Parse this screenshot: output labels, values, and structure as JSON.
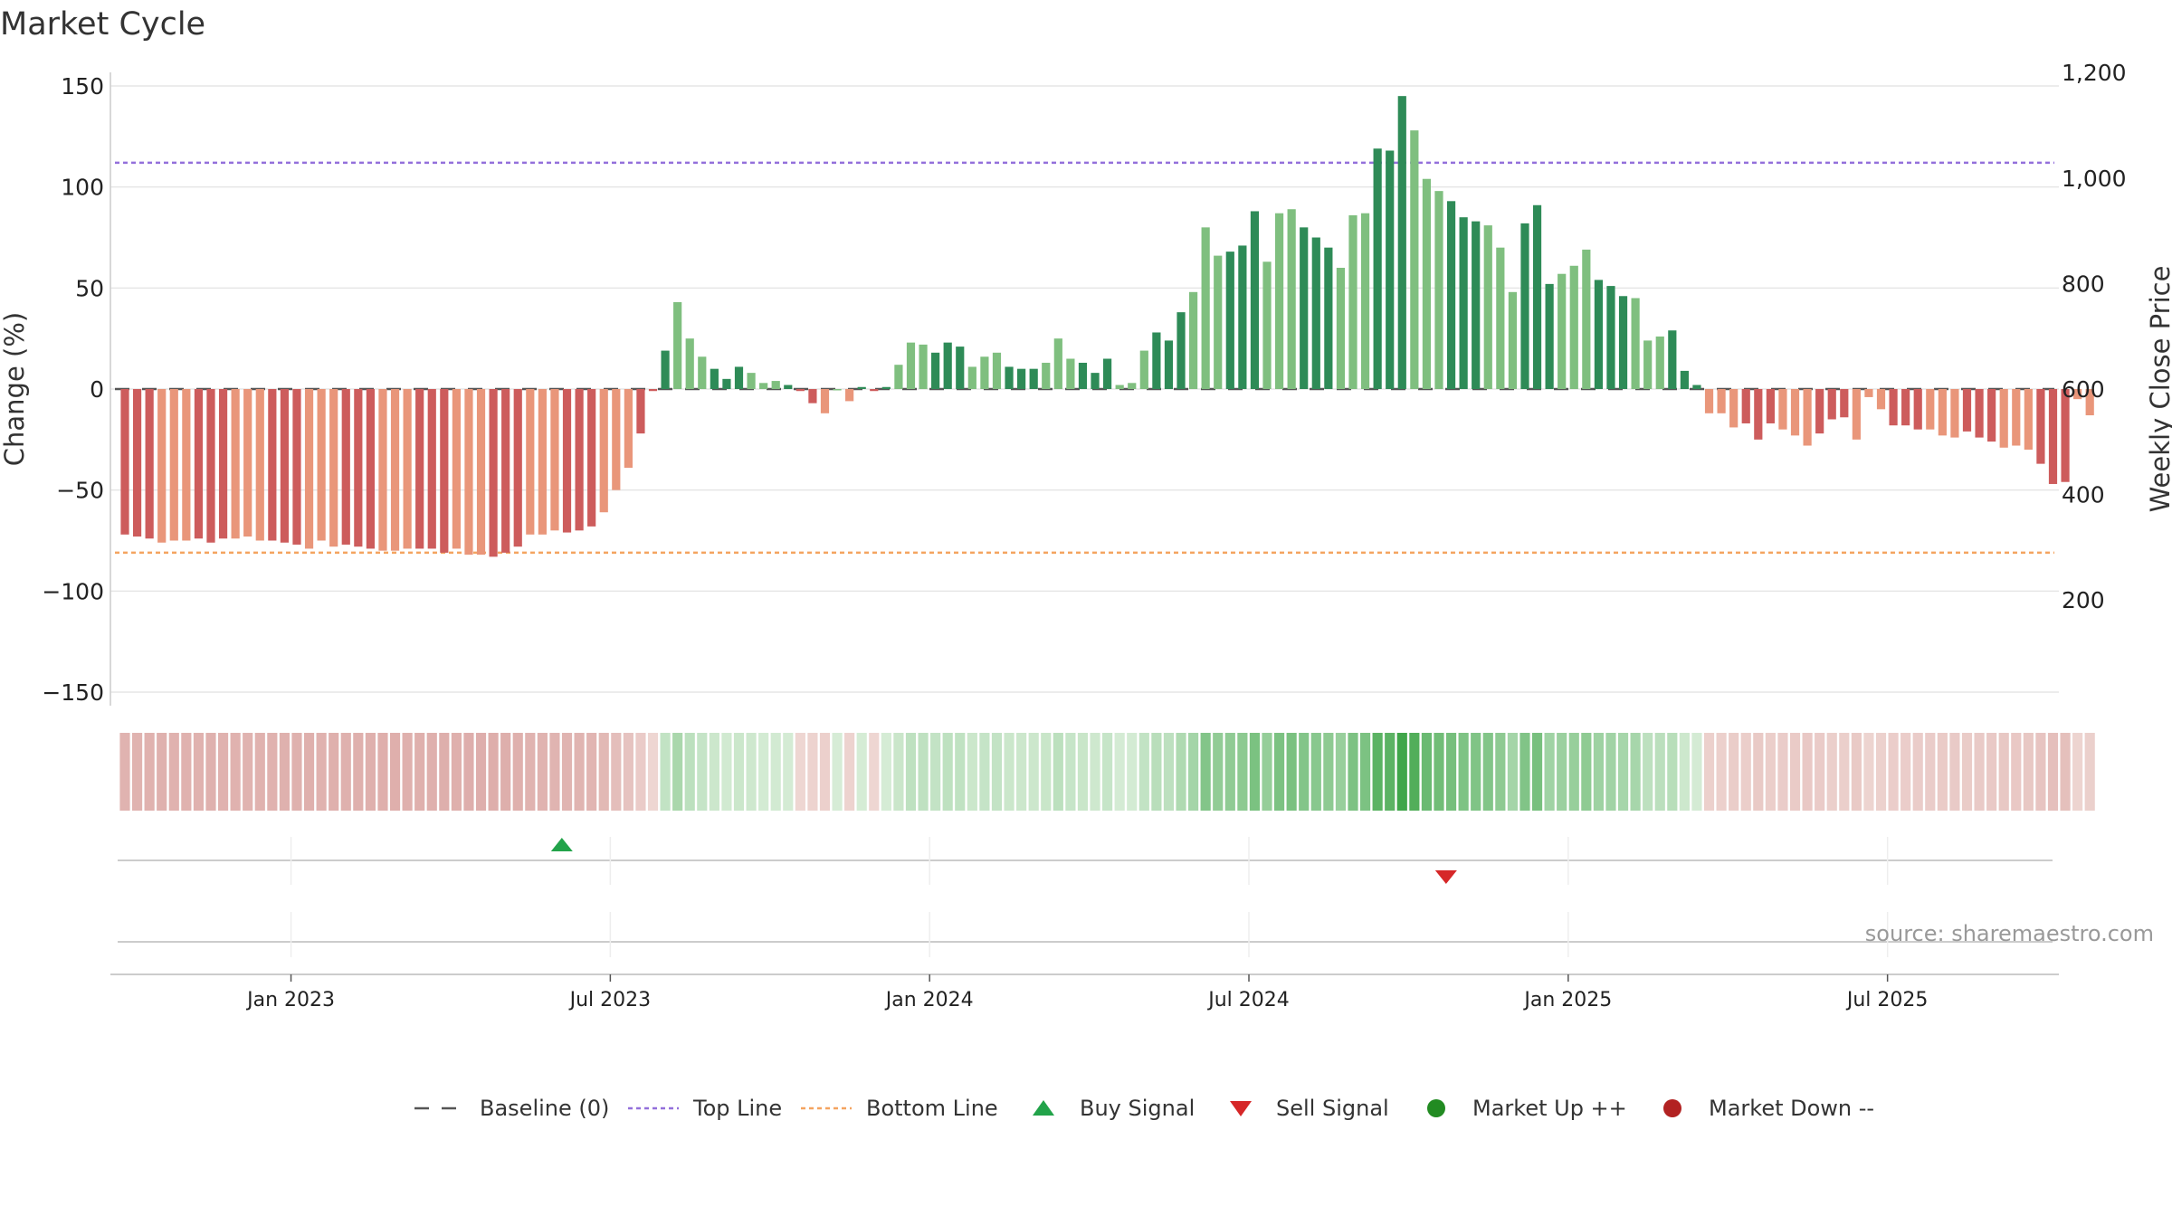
{
  "chart_data": {
    "type": "bar",
    "title": "Market Cycle",
    "ylabel": "Change (%)",
    "y2label": "Weekly Close Price",
    "ylim": [
      -150,
      150
    ],
    "y_ticks": [
      150,
      100,
      50,
      0,
      -50,
      -100,
      -150
    ],
    "y_tick_labels": [
      "150",
      "100",
      "50",
      "0",
      "−50",
      "−100",
      "−150"
    ],
    "y2lim": [
      0,
      1200
    ],
    "y2_ticks": [
      1200,
      1000,
      800,
      600,
      400,
      200
    ],
    "y2_tick_labels": [
      "1,200",
      "1,000",
      "800",
      "600",
      "400",
      "200"
    ],
    "x_tick_labels": [
      "Jan 2023",
      "Jul 2023",
      "Jan 2024",
      "Jul 2024",
      "Jan 2025",
      "Jul 2025"
    ],
    "x_tick_weeks": [
      15,
      41,
      67,
      93,
      119,
      145
    ],
    "top_line": 112,
    "bottom_line": -81,
    "baseline": 0,
    "values": [
      -72,
      -73,
      -74,
      -76,
      -75,
      -75,
      -74,
      -76,
      -74,
      -74,
      -73,
      -75,
      -75,
      -76,
      -77,
      -79,
      -75,
      -78,
      -77,
      -78,
      -79,
      -80,
      -80,
      -79,
      -79,
      -79,
      -81,
      -79,
      -82,
      -82,
      -83,
      -81,
      -78,
      -72,
      -72,
      -70,
      -71,
      -70,
      -68,
      -61,
      -50,
      -39,
      -22,
      -1,
      19,
      43,
      25,
      16,
      10,
      5,
      11,
      8,
      3,
      4,
      2,
      -1,
      -7,
      -12,
      0,
      -6,
      1,
      -1,
      1,
      12,
      23,
      22,
      18,
      23,
      21,
      11,
      16,
      18,
      11,
      10,
      10,
      13,
      25,
      15,
      13,
      8,
      15,
      2,
      3,
      19,
      28,
      24,
      38,
      48,
      80,
      66,
      68,
      71,
      88,
      63,
      87,
      89,
      80,
      75,
      70,
      60,
      86,
      87,
      119,
      118,
      145,
      128,
      104,
      98,
      93,
      85,
      83,
      81,
      70,
      48,
      82,
      91,
      52,
      57,
      61,
      69,
      54,
      51,
      46,
      45,
      24,
      26,
      29,
      9,
      2,
      -12,
      -12,
      -19,
      -17,
      -25,
      -17,
      -20,
      -23,
      -28,
      -22,
      -15,
      -14,
      -25,
      -4,
      -10,
      -18,
      -18,
      -20,
      -20,
      -23,
      -24,
      -21,
      -24,
      -26,
      -29,
      -28,
      -30,
      -37,
      -47,
      -46,
      -5,
      -13
    ],
    "buy_signals": [
      {
        "week": 26
      }
    ],
    "sell_signals": [
      {
        "week": 98
      }
    ],
    "annotation": "source: sharemaestro.com",
    "legend": [
      "Baseline (0)",
      "Top Line",
      "Bottom Line",
      "Buy Signal",
      "Sell Signal",
      "Market Up ++",
      "Market Down --"
    ],
    "legend_position": "bottom",
    "grid": true
  },
  "colors": {
    "up_dark": "#2e8b57",
    "up_light": "#7fbf7f",
    "down_dark": "#cd5c5c",
    "down_light": "#e9967a",
    "top_line": "#9370db",
    "bottom_line": "#f4a460",
    "baseline": "#555555",
    "buy": "#22a34a",
    "sell": "#d62728",
    "market_up": "#228b22",
    "market_down": "#b22222",
    "grid": "#e6e6e6",
    "source_text": "#999999"
  }
}
